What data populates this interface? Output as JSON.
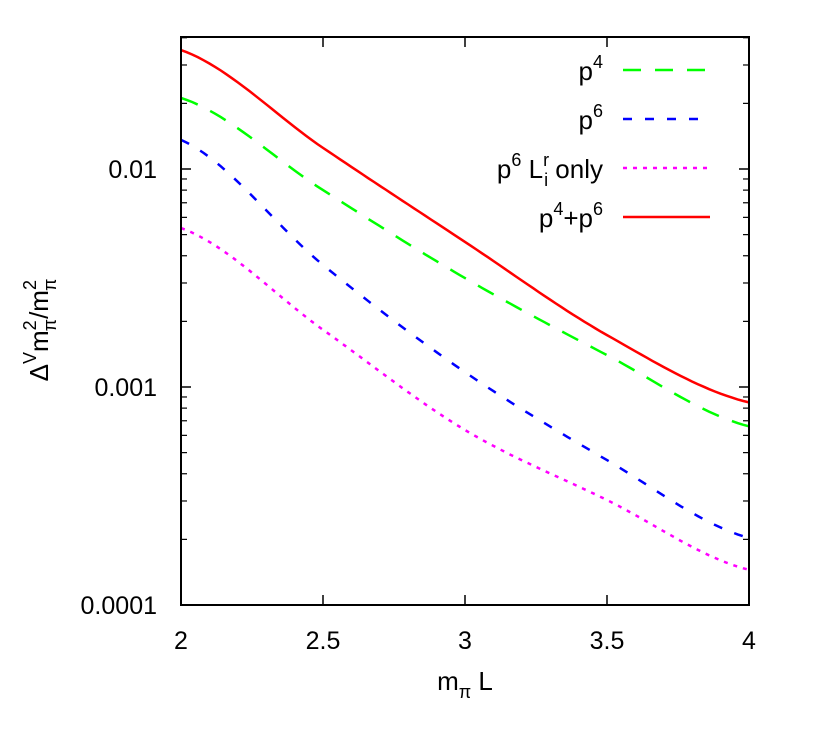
{
  "chart_data": {
    "type": "line",
    "title": "",
    "xlabel": "m_π L",
    "ylabel": "Δ^V m_π^2 / m_π^2",
    "xscale": "linear",
    "yscale": "log",
    "xlim": [
      2,
      4
    ],
    "ylim": [
      0.0001,
      0.0403
    ],
    "grid": false,
    "legend_position": "upper right",
    "x_ticks": [
      2,
      2.5,
      3,
      3.5,
      4
    ],
    "x_tick_labels": [
      "2",
      "2.5",
      "3",
      "3.5",
      "4"
    ],
    "y_ticks": [
      0.0001,
      0.001,
      0.01
    ],
    "y_tick_labels": [
      "0.0001",
      "0.001",
      "0.01"
    ],
    "x": [
      2.0,
      2.5,
      3.0,
      3.5,
      4.0
    ],
    "series": [
      {
        "name": "p^4",
        "label_base": "p",
        "label_sup": "4",
        "color": "#00ff00",
        "dash": "18,14",
        "values": [
          0.0212,
          0.008,
          0.00316,
          0.0014,
          0.00066
        ]
      },
      {
        "name": "p^6",
        "label_base": "p",
        "label_sup": "6",
        "color": "#0000ff",
        "dash": "9,13",
        "values": [
          0.0136,
          0.00363,
          0.00117,
          0.000462,
          0.000203
        ]
      },
      {
        "name": "p^6 L_i^r only",
        "label_base": "p",
        "label_sup": "6",
        "label_rest": " only",
        "color": "#ff00ff",
        "dash": "4,6",
        "values": [
          0.00536,
          0.00183,
          0.000635,
          0.000303,
          0.000145
        ]
      },
      {
        "name": "p^4+p^6",
        "label_base": "p",
        "label_sup": "4",
        "color": "#ff0000",
        "dash": "",
        "values": [
          0.0351,
          0.0125,
          0.00463,
          0.00173,
          0.00085
        ]
      }
    ]
  }
}
